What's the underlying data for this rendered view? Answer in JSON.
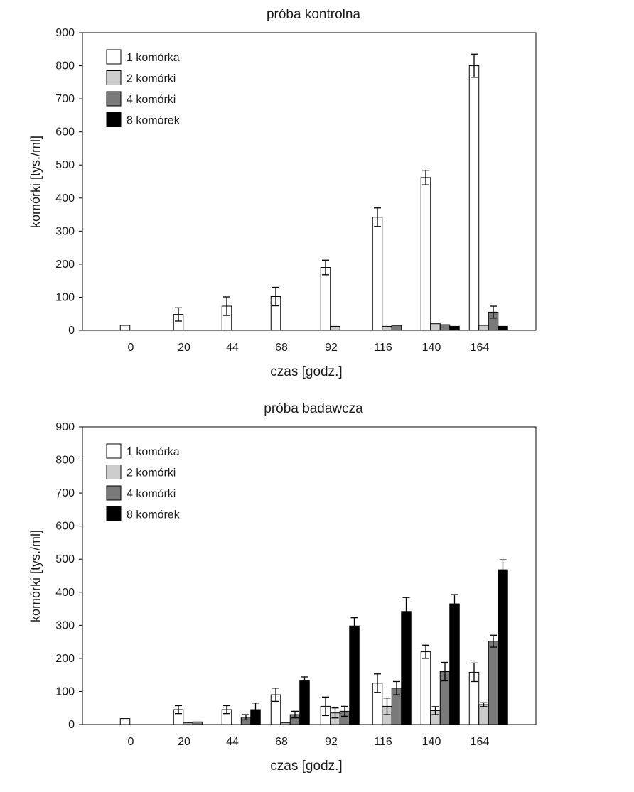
{
  "chart_data": [
    {
      "type": "bar",
      "title": "próba kontrolna",
      "xlabel": "czas [godz.]",
      "ylabel": "komórki [tys./ml]",
      "ylim": [
        0,
        900
      ],
      "yticks": [
        0,
        100,
        200,
        300,
        400,
        500,
        600,
        700,
        800,
        900
      ],
      "categories": [
        "0",
        "20",
        "44",
        "68",
        "92",
        "116",
        "140",
        "164"
      ],
      "legend_position": "top-left",
      "series": [
        {
          "name": "1 komórka",
          "color": "#ffffff",
          "values": [
            15,
            48,
            73,
            102,
            190,
            342,
            462,
            800
          ],
          "errors": [
            0,
            20,
            28,
            28,
            22,
            28,
            22,
            35
          ]
        },
        {
          "name": "2 komórki",
          "color": "#cccccc",
          "values": [
            0,
            0,
            0,
            0,
            12,
            12,
            20,
            15
          ],
          "errors": [
            0,
            0,
            0,
            0,
            0,
            0,
            0,
            0
          ]
        },
        {
          "name": "4 komórki",
          "color": "#7a7a7a",
          "values": [
            0,
            0,
            0,
            0,
            0,
            15,
            17,
            55
          ],
          "errors": [
            0,
            0,
            0,
            0,
            0,
            0,
            0,
            18
          ]
        },
        {
          "name": "8 komórek",
          "color": "#000000",
          "values": [
            0,
            0,
            0,
            0,
            0,
            0,
            12,
            12
          ],
          "errors": [
            0,
            0,
            0,
            0,
            0,
            0,
            0,
            0
          ]
        }
      ]
    },
    {
      "type": "bar",
      "title": "próba badawcza",
      "xlabel": "czas [godz.]",
      "ylabel": "komórki [tys./ml]",
      "ylim": [
        0,
        900
      ],
      "yticks": [
        0,
        100,
        200,
        300,
        400,
        500,
        600,
        700,
        800,
        900
      ],
      "categories": [
        "0",
        "20",
        "44",
        "68",
        "92",
        "116",
        "140",
        "164"
      ],
      "legend_position": "top-left",
      "series": [
        {
          "name": "1 komórka",
          "color": "#ffffff",
          "values": [
            18,
            45,
            45,
            90,
            55,
            125,
            220,
            158
          ],
          "errors": [
            0,
            12,
            12,
            20,
            28,
            28,
            20,
            28
          ]
        },
        {
          "name": "2 komórki",
          "color": "#cccccc",
          "values": [
            0,
            5,
            0,
            5,
            35,
            55,
            42,
            60
          ],
          "errors": [
            0,
            0,
            0,
            0,
            15,
            25,
            12,
            6
          ]
        },
        {
          "name": "4 komórki",
          "color": "#7a7a7a",
          "values": [
            0,
            8,
            22,
            30,
            40,
            110,
            160,
            252
          ],
          "errors": [
            0,
            0,
            8,
            10,
            15,
            20,
            28,
            18
          ]
        },
        {
          "name": "8 komórek",
          "color": "#000000",
          "values": [
            0,
            0,
            45,
            132,
            298,
            342,
            365,
            468
          ],
          "errors": [
            0,
            0,
            20,
            12,
            25,
            42,
            28,
            30
          ]
        }
      ]
    }
  ]
}
